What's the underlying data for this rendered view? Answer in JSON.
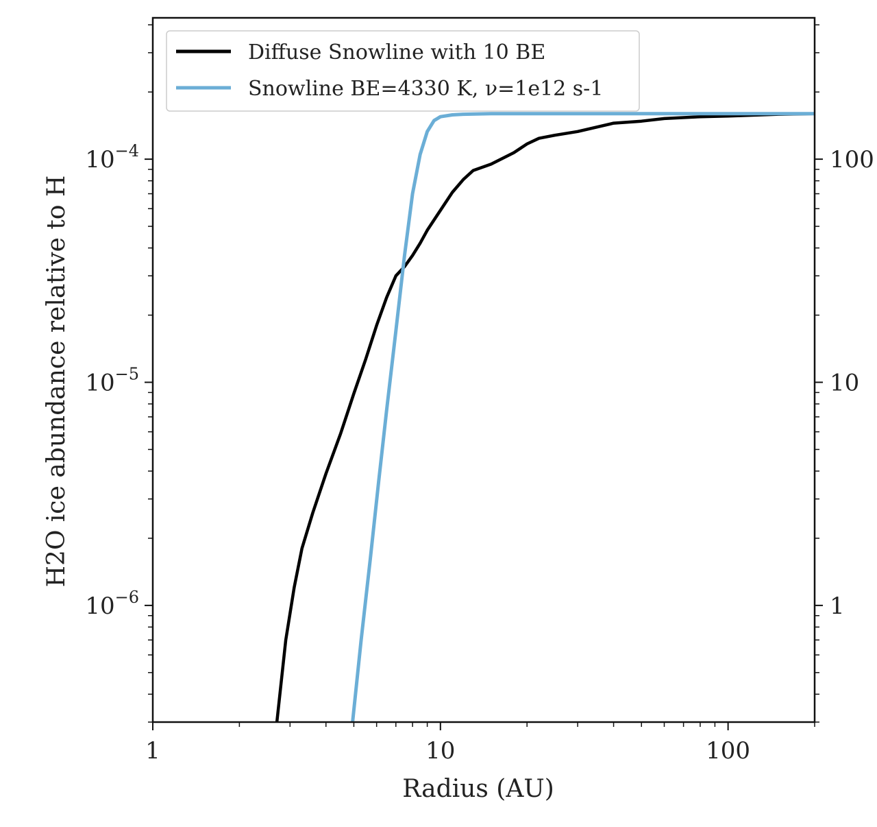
{
  "chart_data": {
    "type": "line",
    "xlabel": "Radius (AU)",
    "ylabel": "H2O ice abundance relative to H",
    "xscale": "log",
    "yscale": "log",
    "xlim": [
      1,
      200
    ],
    "ylim": [
      3e-07,
      0.00043
    ],
    "right_ylim": [
      0.3,
      430
    ],
    "x_ticks": [
      {
        "value": 1,
        "label": "1"
      },
      {
        "value": 10,
        "label": "10"
      },
      {
        "value": 100,
        "label": "100"
      }
    ],
    "y_ticks": [
      {
        "value": 1e-06,
        "base": "10",
        "exp": "−6"
      },
      {
        "value": 1e-05,
        "base": "10",
        "exp": "−5"
      },
      {
        "value": 0.0001,
        "base": "10",
        "exp": "−4"
      }
    ],
    "right_y_ticks": [
      {
        "value": 1,
        "label": "1"
      },
      {
        "value": 10,
        "label": "10"
      },
      {
        "value": 100,
        "label": "100"
      }
    ],
    "legend_position": "top-left",
    "grid": false,
    "series": [
      {
        "name": "Diffuse Snowline with 10 BE",
        "color": "#000000",
        "x": [
          2.7,
          2.9,
          3.1,
          3.3,
          3.6,
          4.0,
          4.5,
          5.0,
          5.5,
          6.0,
          6.5,
          7.0,
          7.5,
          8.0,
          8.5,
          9.0,
          10.0,
          11.0,
          12.0,
          13.0,
          15.0,
          18.0,
          20.0,
          22.0,
          25.0,
          30.0,
          40.0,
          50.0,
          60.0,
          80.0,
          100.0,
          150.0,
          200.0
        ],
        "y": [
          3e-07,
          7e-07,
          1.2e-06,
          1.8e-06,
          2.6e-06,
          3.9e-06,
          5.9e-06,
          8.9e-06,
          1.27e-05,
          1.8e-05,
          2.4e-05,
          3e-05,
          3.3e-05,
          3.7e-05,
          4.2e-05,
          4.8e-05,
          5.9e-05,
          7.1e-05,
          8.1e-05,
          8.9e-05,
          9.5e-05,
          0.000107,
          0.000117,
          0.000124,
          0.000128,
          0.000133,
          0.000145,
          0.000148,
          0.000152,
          0.000155,
          0.000156,
          0.000159,
          0.00016
        ]
      },
      {
        "name": "Snowline BE=4330 K, ν=1e12 s-1",
        "color": "#6baed6",
        "x": [
          4.95,
          5.3,
          5.7,
          6.1,
          6.5,
          7.0,
          7.5,
          8.0,
          8.5,
          9.0,
          9.5,
          10.0,
          11.0,
          12.0,
          15.0,
          30.0,
          100.0,
          200.0
        ],
        "y": [
          3e-07,
          7e-07,
          1.6e-06,
          3.6e-06,
          7.5e-06,
          1.7e-05,
          3.7e-05,
          7e-05,
          0.000105,
          0.000133,
          0.000149,
          0.000155,
          0.000158,
          0.000159,
          0.00016,
          0.00016,
          0.00016,
          0.00016
        ]
      }
    ]
  }
}
